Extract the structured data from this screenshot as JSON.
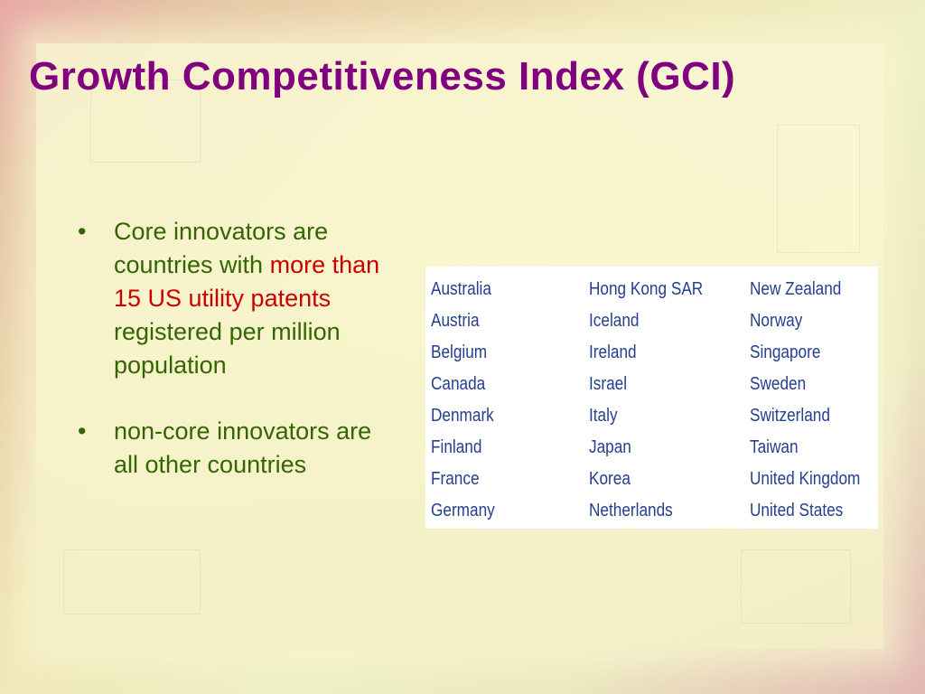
{
  "slide": {
    "title": "Growth Competitiveness Index (GCI)",
    "bullets": [
      {
        "marker": "•",
        "parts": [
          {
            "text": "Core innovators are countries with ",
            "highlight": false
          },
          {
            "text": "more than 15 US utility patents",
            "highlight": true
          },
          {
            "text": " registered per million population",
            "highlight": false
          }
        ]
      },
      {
        "marker": "•",
        "parts": [
          {
            "text": "non-core innovators are all other countries",
            "highlight": false
          }
        ]
      }
    ],
    "countries": [
      [
        "Australia",
        "Hong Kong SAR",
        "New Zealand"
      ],
      [
        "Austria",
        "Iceland",
        "Norway"
      ],
      [
        "Belgium",
        "Ireland",
        "Singapore"
      ],
      [
        "Canada",
        "Israel",
        "Sweden"
      ],
      [
        "Denmark",
        "Italy",
        "Switzerland"
      ],
      [
        "Finland",
        "Japan",
        "Taiwan"
      ],
      [
        "France",
        "Korea",
        "United Kingdom"
      ],
      [
        "Germany",
        "Netherlands",
        "United States"
      ]
    ],
    "colors": {
      "title": "#800080",
      "body_text": "#336600",
      "highlight_text": "#cc0000",
      "country_text": "#24408e"
    }
  }
}
